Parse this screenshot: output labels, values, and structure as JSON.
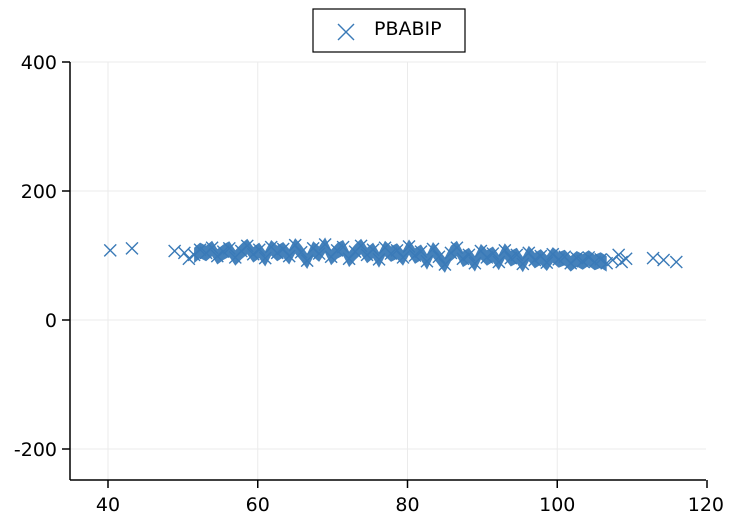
{
  "chart_data": {
    "type": "scatter",
    "title": "",
    "xlabel": "",
    "ylabel": "",
    "xlim": [
      35,
      120
    ],
    "ylim": [
      -250,
      400
    ],
    "x_ticks": [
      40,
      60,
      80,
      100,
      120
    ],
    "y_ticks": [
      -200,
      0,
      200,
      400
    ],
    "grid": true,
    "legend_position": "top-center",
    "series": [
      {
        "name": "PBABIP",
        "marker": "x",
        "color": "#3a7ab7",
        "points": [
          [
            40.3,
            108
          ],
          [
            43.2,
            111
          ],
          [
            48.9,
            107
          ],
          [
            50.2,
            104
          ],
          [
            50.8,
            95
          ],
          [
            51.5,
            101
          ],
          [
            52.3,
            109
          ],
          [
            53.1,
            104
          ],
          [
            53.9,
            112
          ],
          [
            54.6,
            99
          ],
          [
            55.4,
            106
          ],
          [
            56.2,
            111
          ],
          [
            57.0,
            97
          ],
          [
            57.8,
            107
          ],
          [
            58.6,
            115
          ],
          [
            59.4,
            102
          ],
          [
            60.2,
            109
          ],
          [
            61.0,
            96
          ],
          [
            61.8,
            113
          ],
          [
            62.6,
            104
          ],
          [
            63.4,
            110
          ],
          [
            64.2,
            99
          ],
          [
            65.0,
            116
          ],
          [
            65.8,
            105
          ],
          [
            66.6,
            92
          ],
          [
            67.4,
            111
          ],
          [
            68.2,
            103
          ],
          [
            69.0,
            117
          ],
          [
            69.8,
            98
          ],
          [
            70.6,
            108
          ],
          [
            71.4,
            113
          ],
          [
            72.2,
            95
          ],
          [
            73.0,
            106
          ],
          [
            73.8,
            115
          ],
          [
            74.6,
            101
          ],
          [
            75.4,
            109
          ],
          [
            76.2,
            94
          ],
          [
            77.0,
            112
          ],
          [
            77.8,
            103
          ],
          [
            78.6,
            108
          ],
          [
            79.4,
            97
          ],
          [
            80.2,
            114
          ],
          [
            81.0,
            100
          ],
          [
            81.8,
            106
          ],
          [
            82.6,
            91
          ],
          [
            83.4,
            110
          ],
          [
            84.2,
            98
          ],
          [
            85.0,
            86
          ],
          [
            85.8,
            104
          ],
          [
            86.6,
            112
          ],
          [
            87.4,
            95
          ],
          [
            88.2,
            101
          ],
          [
            89.0,
            88
          ],
          [
            89.8,
            107
          ],
          [
            90.6,
            97
          ],
          [
            91.4,
            103
          ],
          [
            92.2,
            90
          ],
          [
            93.0,
            108
          ],
          [
            93.8,
            96
          ],
          [
            94.6,
            101
          ],
          [
            95.4,
            87
          ],
          [
            96.2,
            104
          ],
          [
            97.0,
            93
          ],
          [
            97.8,
            99
          ],
          [
            98.6,
            89
          ],
          [
            99.4,
            102
          ],
          [
            100.2,
            94
          ],
          [
            101.0,
            98
          ],
          [
            101.8,
            88
          ],
          [
            102.6,
            96
          ],
          [
            103.4,
            91
          ],
          [
            104.2,
            97
          ],
          [
            105.0,
            90
          ],
          [
            105.8,
            94
          ],
          [
            106.6,
            88
          ],
          [
            107.4,
            93
          ],
          [
            108.2,
            101
          ],
          [
            108.6,
            90
          ],
          [
            109.2,
            95
          ],
          [
            112.8,
            96
          ],
          [
            114.2,
            93
          ],
          [
            115.9,
            90
          ]
        ]
      }
    ]
  },
  "legend": {
    "label": "PBABIP"
  }
}
